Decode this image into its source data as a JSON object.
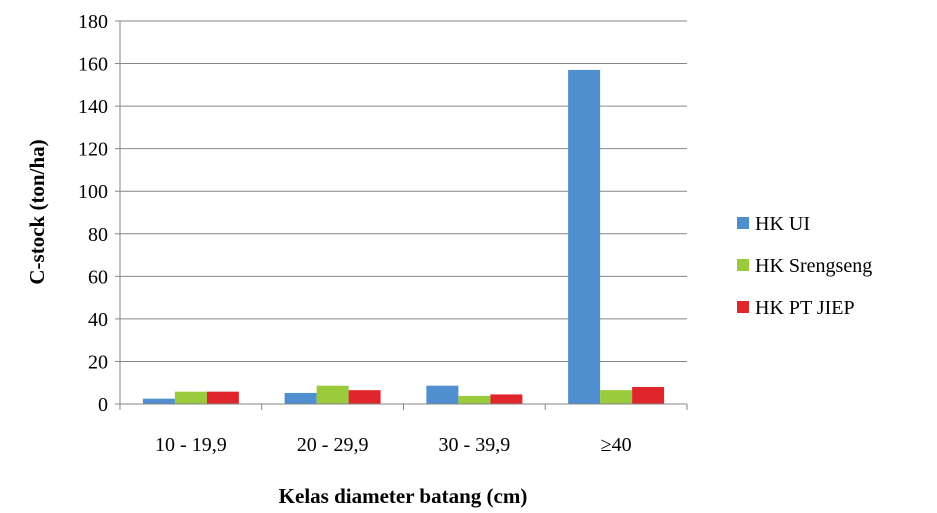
{
  "chart_data": {
    "type": "bar",
    "title": "",
    "xlabel": "Kelas diameter batang (cm)",
    "ylabel": "C-stock (ton/ha)",
    "categories": [
      "10 - 19,9",
      "20 - 29,9",
      "30 - 39,9",
      "≥40"
    ],
    "series": [
      {
        "name": "HK UI",
        "color": "#4f8fcf",
        "values": [
          2.5,
          5.2,
          8.6,
          157
        ]
      },
      {
        "name": "HK Srengseng",
        "color": "#9acb3c",
        "values": [
          5.8,
          8.6,
          3.8,
          6.5
        ]
      },
      {
        "name": "HK PT JIEP",
        "color": "#e0262d",
        "values": [
          5.8,
          6.5,
          4.5,
          8.0
        ]
      }
    ],
    "ylim": [
      0,
      180
    ],
    "yticks": [
      0,
      20,
      40,
      60,
      80,
      100,
      120,
      140,
      160,
      180
    ],
    "grid": true,
    "legend_position": "right"
  }
}
